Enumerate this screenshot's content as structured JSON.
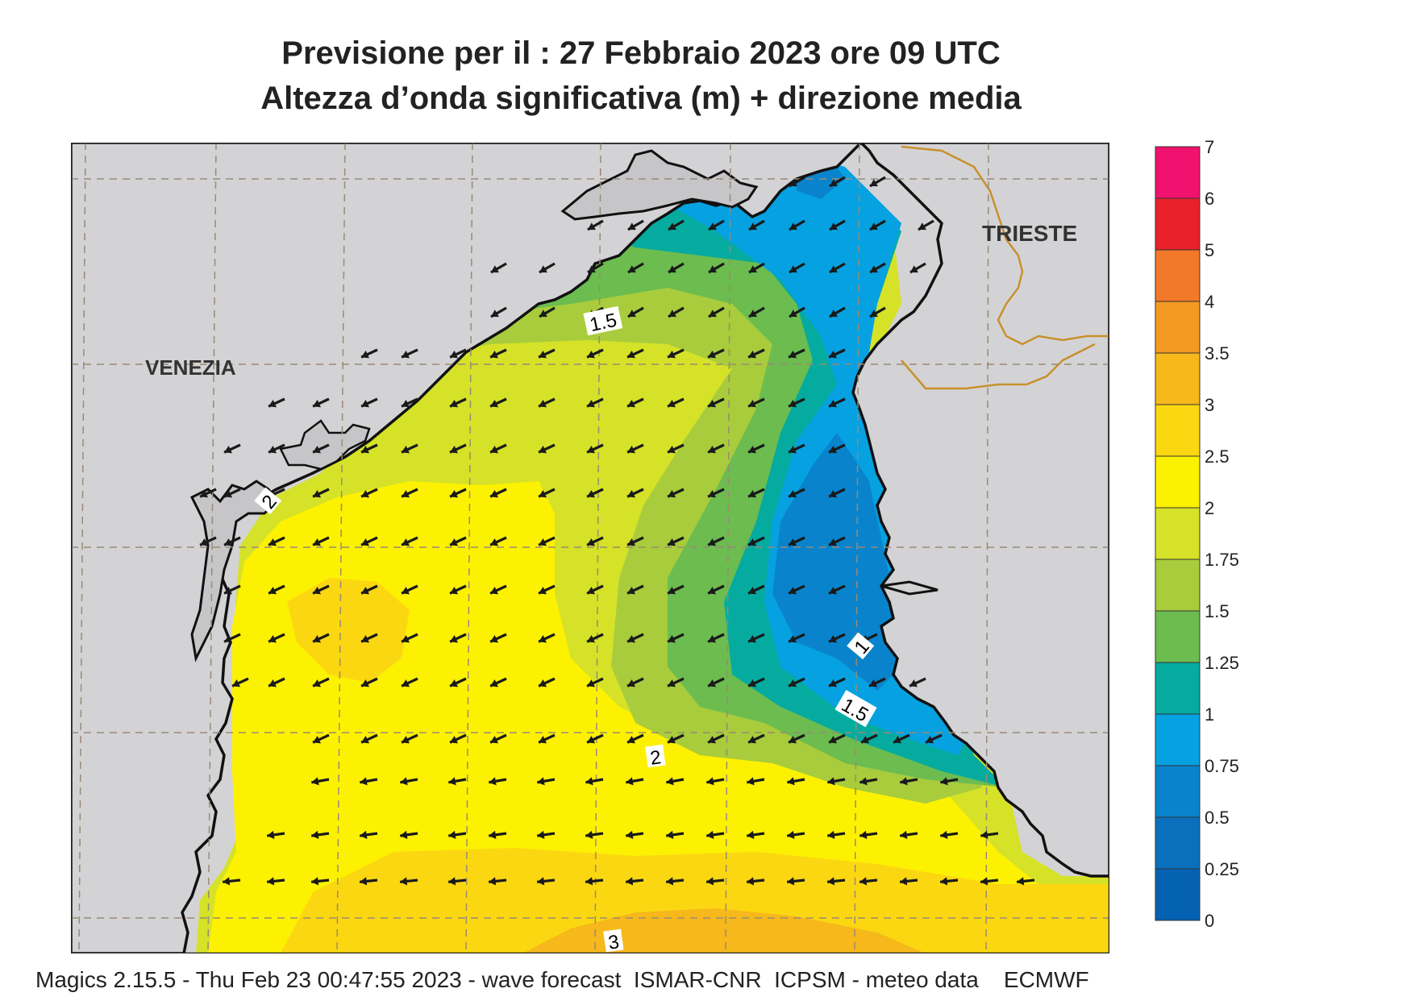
{
  "title": {
    "line1": "Previsione per il  :  27  Febbraio 2023   ore 09 UTC",
    "line2": "Altezza d’onda significativa (m) + direzione media"
  },
  "places": {
    "venezia": "VENEZIA",
    "trieste": "TRIESTE"
  },
  "contour_labels": {
    "a": "1.5",
    "b": "2",
    "c": "1",
    "d": "1.5",
    "e": "2",
    "f": "3"
  },
  "legend": {
    "ticks": [
      "7",
      "6",
      "5",
      "4",
      "3.5",
      "3",
      "2.5",
      "2",
      "1.75",
      "1.5",
      "1.25",
      "1",
      "0.75",
      "0.5",
      "0.25",
      "0"
    ],
    "colors": [
      "#f0126e",
      "#e8202a",
      "#f2782a",
      "#f49a22",
      "#f6b81a",
      "#fbd711",
      "#fdf102",
      "#d5e228",
      "#a8cc3c",
      "#6cbc50",
      "#06aba0",
      "#06a1e1",
      "#0984cc",
      "#0a70be",
      "#0561b2"
    ]
  },
  "footer": "Magics 2.15.5 - Thu Feb 23 00:47:55 2023 - wave forecast  ISMAR-CNR  ICPSM - meteo data    ECMWF",
  "colors": {
    "land": "#d3d3d5",
    "grid": "#9a8a74",
    "border": "#c8902c",
    "arrow": "#1a1a1a"
  }
}
